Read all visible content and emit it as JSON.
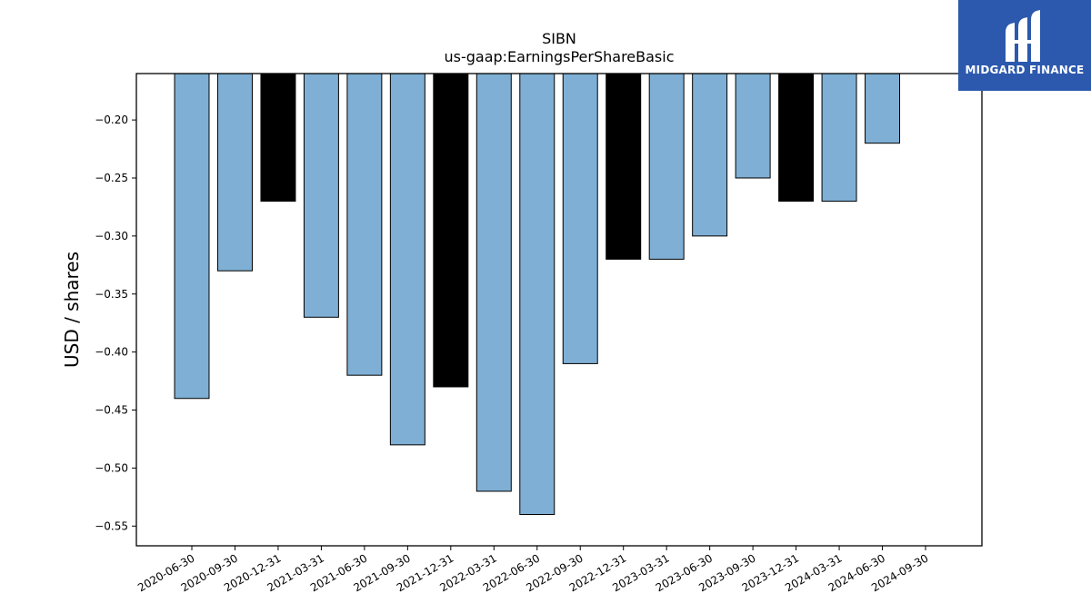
{
  "chart_data": {
    "type": "bar",
    "title": "SIBN",
    "subtitle": "us-gaap:EarningsPerShareBasic",
    "xlabel": "",
    "ylabel": "USD / shares",
    "ylim": [
      -0.567,
      -0.16
    ],
    "yticks": [
      -0.2,
      -0.25,
      -0.3,
      -0.35,
      -0.4,
      -0.45,
      -0.5,
      -0.55
    ],
    "ytick_labels": [
      "−0.20",
      "−0.25",
      "−0.30",
      "−0.35",
      "−0.40",
      "−0.45",
      "−0.50",
      "−0.55"
    ],
    "grid": false,
    "categories": [
      "2020-06-30",
      "2020-09-30",
      "2020-12-31",
      "2021-03-31",
      "2021-06-30",
      "2021-09-30",
      "2021-12-31",
      "2022-03-31",
      "2022-06-30",
      "2022-09-30",
      "2022-12-31",
      "2023-03-31",
      "2023-06-30",
      "2023-09-30",
      "2023-12-31",
      "2024-03-31",
      "2024-06-30",
      "2024-09-30"
    ],
    "values": [
      -0.44,
      -0.33,
      -0.27,
      -0.37,
      -0.42,
      -0.48,
      -0.43,
      -0.52,
      -0.54,
      -0.41,
      -0.32,
      -0.32,
      -0.3,
      -0.25,
      -0.27,
      -0.27,
      -0.22,
      null
    ],
    "bar_colors": [
      "#7fafd4",
      "#7fafd4",
      "#000000",
      "#7fafd4",
      "#7fafd4",
      "#7fafd4",
      "#000000",
      "#7fafd4",
      "#7fafd4",
      "#7fafd4",
      "#000000",
      "#7fafd4",
      "#7fafd4",
      "#7fafd4",
      "#000000",
      "#7fafd4",
      "#7fafd4",
      "#7fafd4"
    ],
    "edge_color": "#000000"
  },
  "logo": {
    "text": "MIDGARD FINANCE",
    "background": "#2c59ad"
  }
}
